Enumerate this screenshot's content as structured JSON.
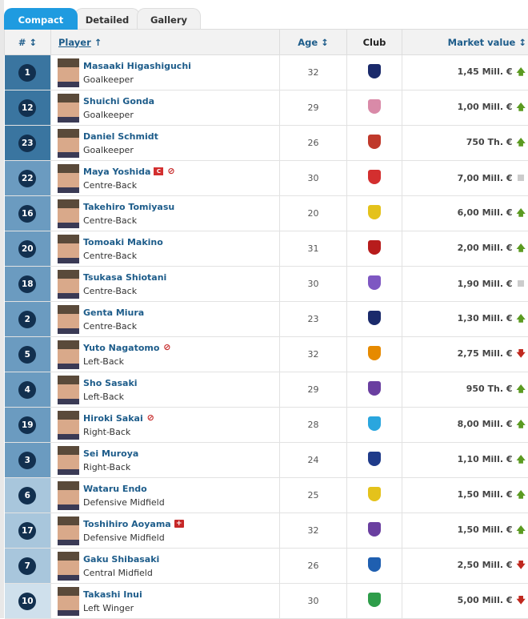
{
  "tabs": [
    "Compact",
    "Detailed",
    "Gallery"
  ],
  "headers": {
    "num": "# ↕",
    "player": "Player",
    "player_sort": "↑",
    "age": "Age ↕",
    "club": "Club",
    "value": "Market value ↕"
  },
  "colors": {
    "GK": "#3a75a0",
    "DEF": "#6b9bc0",
    "MID": "#a8c6dc",
    "FWD": "#cfe0ec",
    "accent": "#1f9be0"
  },
  "players": [
    {
      "num": "1",
      "name": "Masaaki Higashiguchi",
      "position": "Goalkeeper",
      "group": "GK",
      "age": "32",
      "club_crest": "#1a2a6b",
      "value": "1,45 Mill. €",
      "trend": "up",
      "icons": []
    },
    {
      "num": "12",
      "name": "Shuichi Gonda",
      "position": "Goalkeeper",
      "group": "GK",
      "age": "29",
      "club_crest": "#d98aa8",
      "value": "1,00 Mill. €",
      "trend": "up",
      "icons": []
    },
    {
      "num": "23",
      "name": "Daniel Schmidt",
      "position": "Goalkeeper",
      "group": "GK",
      "age": "26",
      "club_crest": "#c0392b",
      "value": "750 Th. €",
      "trend": "up",
      "icons": []
    },
    {
      "num": "22",
      "name": "Maya Yoshida",
      "position": "Centre-Back",
      "group": "DEF",
      "age": "30",
      "club_crest": "#d32f2f",
      "value": "7,00 Mill. €",
      "trend": "flat",
      "icons": [
        "captain-icon",
        "ban-icon"
      ]
    },
    {
      "num": "16",
      "name": "Takehiro Tomiyasu",
      "position": "Centre-Back",
      "group": "DEF",
      "age": "20",
      "club_crest": "#e4c21b",
      "value": "6,00 Mill. €",
      "trend": "up",
      "icons": []
    },
    {
      "num": "20",
      "name": "Tomoaki Makino",
      "position": "Centre-Back",
      "group": "DEF",
      "age": "31",
      "club_crest": "#b71c1c",
      "value": "2,00 Mill. €",
      "trend": "up",
      "icons": []
    },
    {
      "num": "18",
      "name": "Tsukasa Shiotani",
      "position": "Centre-Back",
      "group": "DEF",
      "age": "30",
      "club_crest": "#7e57c2",
      "value": "1,90 Mill. €",
      "trend": "flat",
      "icons": []
    },
    {
      "num": "2",
      "name": "Genta Miura",
      "position": "Centre-Back",
      "group": "DEF",
      "age": "23",
      "club_crest": "#1a2a6b",
      "value": "1,30 Mill. €",
      "trend": "up",
      "icons": []
    },
    {
      "num": "5",
      "name": "Yuto Nagatomo",
      "position": "Left-Back",
      "group": "DEF",
      "age": "32",
      "club_crest": "#e68a00",
      "value": "2,75 Mill. €",
      "trend": "down",
      "icons": [
        "ban-icon"
      ]
    },
    {
      "num": "4",
      "name": "Sho Sasaki",
      "position": "Left-Back",
      "group": "DEF",
      "age": "29",
      "club_crest": "#6a3fa0",
      "value": "950 Th. €",
      "trend": "up",
      "icons": []
    },
    {
      "num": "19",
      "name": "Hiroki Sakai",
      "position": "Right-Back",
      "group": "DEF",
      "age": "28",
      "club_crest": "#2aa6de",
      "value": "8,00 Mill. €",
      "trend": "up",
      "icons": [
        "ban-icon"
      ]
    },
    {
      "num": "3",
      "name": "Sei Muroya",
      "position": "Right-Back",
      "group": "DEF",
      "age": "24",
      "club_crest": "#1f3b8a",
      "value": "1,10 Mill. €",
      "trend": "up",
      "icons": []
    },
    {
      "num": "6",
      "name": "Wataru Endo",
      "position": "Defensive Midfield",
      "group": "MID",
      "age": "25",
      "club_crest": "#e4c21b",
      "value": "1,50 Mill. €",
      "trend": "up",
      "icons": []
    },
    {
      "num": "17",
      "name": "Toshihiro Aoyama",
      "position": "Defensive Midfield",
      "group": "MID",
      "age": "32",
      "club_crest": "#6a3fa0",
      "value": "1,50 Mill. €",
      "trend": "up",
      "icons": [
        "injury-icon"
      ]
    },
    {
      "num": "7",
      "name": "Gaku Shibasaki",
      "position": "Central Midfield",
      "group": "MID",
      "age": "26",
      "club_crest": "#1f5fb0",
      "value": "2,50 Mill. €",
      "trend": "down",
      "icons": []
    },
    {
      "num": "10",
      "name": "Takashi Inui",
      "position": "Left Winger",
      "group": "FWD",
      "age": "30",
      "club_crest": "#2e9d4a",
      "value": "5,00 Mill. €",
      "trend": "down",
      "icons": []
    }
  ]
}
